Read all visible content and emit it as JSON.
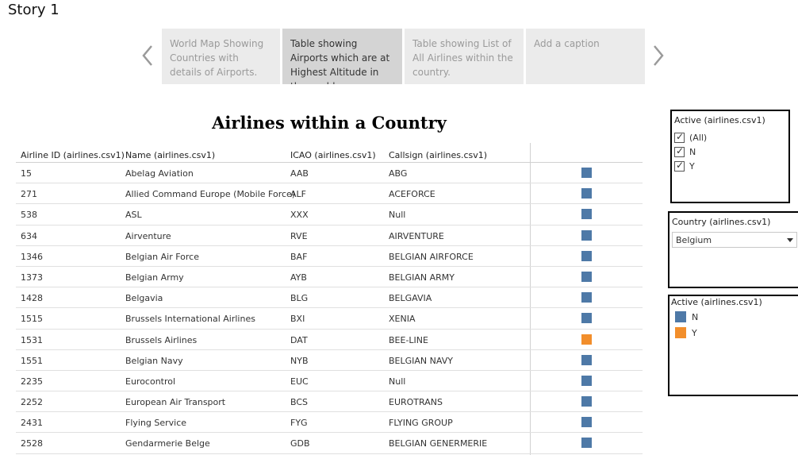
{
  "story": {
    "title": "Story 1"
  },
  "story_points": [
    {
      "label": "World Map Showing Countries with details of Airports.",
      "active": false
    },
    {
      "label": "Table showing Airports which are at Highest Altitude in the world",
      "active": true
    },
    {
      "label": "Table showing List of All Airlines within the country.",
      "active": false
    },
    {
      "label": "Add a caption",
      "active": false
    }
  ],
  "sheet": {
    "title": "Airlines within a Country"
  },
  "table": {
    "headers": {
      "id": "Airline ID (airlines.csv1)",
      "name": "Name (airlines.csv1)",
      "icao": "ICAO (airlines.csv1)",
      "callsign": "Callsign (airlines.csv1)"
    },
    "rows": [
      {
        "id": "15",
        "name": "Abelag Aviation",
        "icao": "AAB",
        "callsign": "ABG",
        "active": "N"
      },
      {
        "id": "271",
        "name": "Allied Command Europe (Mobile Force)",
        "icao": "ALF",
        "callsign": "ACEFORCE",
        "active": "N"
      },
      {
        "id": "538",
        "name": "ASL",
        "icao": "XXX",
        "callsign": "Null",
        "active": "N"
      },
      {
        "id": "634",
        "name": "Airventure",
        "icao": "RVE",
        "callsign": "AIRVENTURE",
        "active": "N"
      },
      {
        "id": "1346",
        "name": "Belgian Air Force",
        "icao": "BAF",
        "callsign": "BELGIAN AIRFORCE",
        "active": "N"
      },
      {
        "id": "1373",
        "name": "Belgian Army",
        "icao": "AYB",
        "callsign": "BELGIAN ARMY",
        "active": "N"
      },
      {
        "id": "1428",
        "name": "Belgavia",
        "icao": "BLG",
        "callsign": "BELGAVIA",
        "active": "N"
      },
      {
        "id": "1515",
        "name": "Brussels International Airlines",
        "icao": "BXI",
        "callsign": "XENIA",
        "active": "N"
      },
      {
        "id": "1531",
        "name": "Brussels Airlines",
        "icao": "DAT",
        "callsign": "BEE-LINE",
        "active": "Y"
      },
      {
        "id": "1551",
        "name": "Belgian Navy",
        "icao": "NYB",
        "callsign": "BELGIAN NAVY",
        "active": "N"
      },
      {
        "id": "2235",
        "name": "Eurocontrol",
        "icao": "EUC",
        "callsign": "Null",
        "active": "N"
      },
      {
        "id": "2252",
        "name": "European Air Transport",
        "icao": "BCS",
        "callsign": "EUROTRANS",
        "active": "N"
      },
      {
        "id": "2431",
        "name": "Flying Service",
        "icao": "FYG",
        "callsign": "FLYING GROUP",
        "active": "N"
      },
      {
        "id": "2528",
        "name": "Gendarmerie Belge",
        "icao": "GDB",
        "callsign": "BELGIAN GENERMERIE",
        "active": "N"
      }
    ]
  },
  "filters": {
    "active": {
      "title": "Active (airlines.csv1)",
      "options": [
        {
          "label": "(All)",
          "checked": true
        },
        {
          "label": "N",
          "checked": true
        },
        {
          "label": "Y",
          "checked": true
        }
      ]
    },
    "country": {
      "title": "Country (airlines.csv1)",
      "value": "Belgium"
    }
  },
  "legend": {
    "title": "Active (airlines.csv1)",
    "items": [
      {
        "label": "N",
        "color": "#4e79a7"
      },
      {
        "label": "Y",
        "color": "#f28e2b"
      }
    ]
  },
  "icons": {
    "prev": "chevron-left-icon",
    "next": "chevron-right-icon",
    "dropdown": "caret-down-icon",
    "check": "checkmark-icon"
  }
}
